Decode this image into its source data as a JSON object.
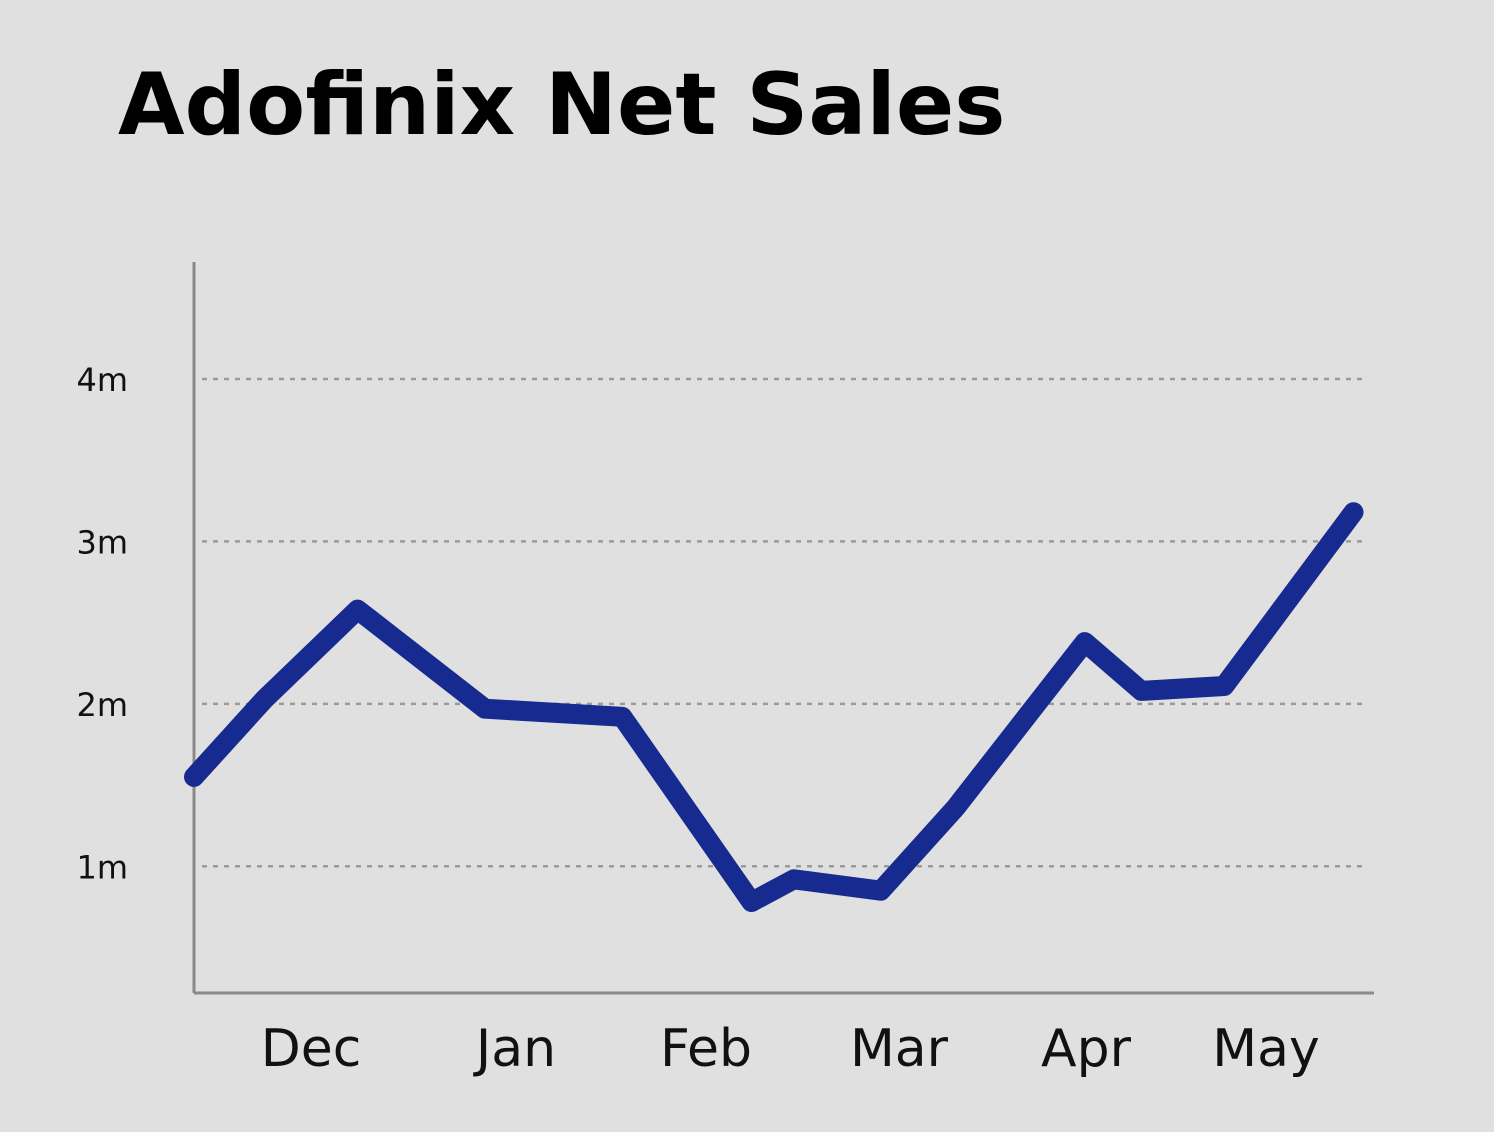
{
  "chart_data": {
    "type": "line",
    "title": "Adofinix Net Sales",
    "xlabel": "",
    "ylabel": "",
    "x_tick_labels": [
      "Dec",
      "Jan",
      "Feb",
      "Mar",
      "Apr",
      "May"
    ],
    "y_tick_labels": [
      "1m",
      "2m",
      "3m",
      "4m"
    ],
    "y_tick_values": [
      1,
      2,
      3,
      4
    ],
    "ylim": [
      0.22,
      4.72
    ],
    "grid": "horizontal dashed",
    "series": [
      {
        "color": "#162a8f",
        "points": [
          {
            "x": 0.0,
            "y": 1.55
          },
          {
            "x": 0.35,
            "y": 2.03
          },
          {
            "x": 0.81,
            "y": 2.58
          },
          {
            "x": 1.44,
            "y": 1.97
          },
          {
            "x": 2.12,
            "y": 1.92
          },
          {
            "x": 2.76,
            "y": 0.78
          },
          {
            "x": 2.97,
            "y": 0.92
          },
          {
            "x": 3.4,
            "y": 0.85
          },
          {
            "x": 3.77,
            "y": 1.36
          },
          {
            "x": 4.41,
            "y": 2.38
          },
          {
            "x": 4.69,
            "y": 2.08
          },
          {
            "x": 5.1,
            "y": 2.11
          },
          {
            "x": 5.74,
            "y": 3.18
          }
        ]
      }
    ]
  }
}
